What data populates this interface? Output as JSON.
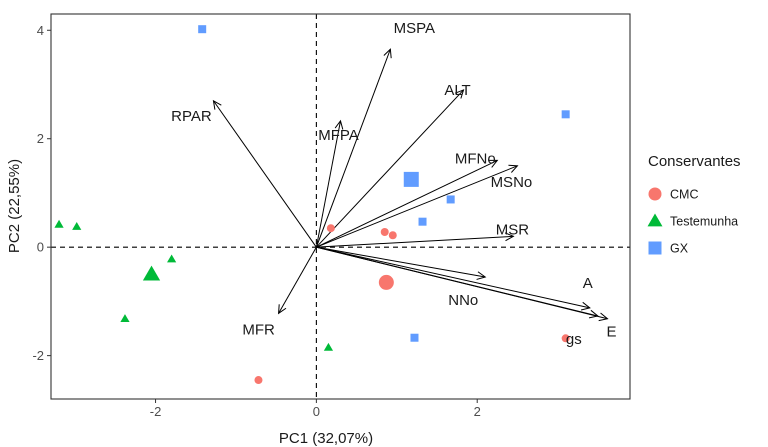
{
  "chart_data": {
    "type": "scatter",
    "subtype": "pca-biplot",
    "xlabel": "PC1 (32,07%)",
    "ylabel": "PC2 (22,55%)",
    "xlim": [
      -3.3,
      3.9
    ],
    "ylim": [
      -2.8,
      4.3
    ],
    "xticks": [
      -2,
      0,
      2
    ],
    "yticks": [
      -2,
      0,
      2,
      4
    ],
    "grid": false,
    "reference_lines": {
      "x": 0,
      "y": 0,
      "style": "dashed"
    },
    "legend": {
      "title": "Conservantes",
      "placement": "right"
    },
    "series": [
      {
        "name": "CMC",
        "color": "#F8766D",
        "shape": "circle",
        "points": [
          [
            0.18,
            0.35
          ],
          [
            0.85,
            0.28
          ],
          [
            0.95,
            0.22
          ],
          [
            -0.72,
            -2.45
          ],
          [
            3.1,
            -1.68
          ]
        ],
        "centroid": [
          0.87,
          -0.65
        ]
      },
      {
        "name": "Testemunha",
        "color": "#00BA38",
        "shape": "triangle",
        "points": [
          [
            -3.2,
            0.42
          ],
          [
            -2.98,
            0.38
          ],
          [
            -1.8,
            -0.22
          ],
          [
            -2.38,
            -1.32
          ],
          [
            0.15,
            -1.85
          ]
        ],
        "centroid": [
          -2.05,
          -0.5
        ]
      },
      {
        "name": "GX",
        "color": "#619CFF",
        "shape": "square",
        "points": [
          [
            -1.42,
            4.02
          ],
          [
            3.1,
            2.45
          ],
          [
            1.67,
            0.88
          ],
          [
            1.32,
            0.47
          ],
          [
            1.22,
            -1.67
          ]
        ],
        "centroid": [
          1.18,
          1.25
        ]
      }
    ],
    "loadings": [
      {
        "label": "MSPA",
        "x": 0.92,
        "y": 3.65
      },
      {
        "label": "ALT",
        "x": 1.83,
        "y": 2.9
      },
      {
        "label": "RPAR",
        "x": -1.28,
        "y": 2.7
      },
      {
        "label": "MFPA",
        "x": 0.3,
        "y": 2.33
      },
      {
        "label": "MFNo",
        "x": 2.25,
        "y": 1.6
      },
      {
        "label": "MSNo",
        "x": 2.5,
        "y": 1.5
      },
      {
        "label": "MSR",
        "x": 2.45,
        "y": 0.2
      },
      {
        "label": "NNo",
        "x": 2.1,
        "y": -0.55
      },
      {
        "label": "A",
        "x": 3.4,
        "y": -1.12
      },
      {
        "label": "E",
        "x": 3.62,
        "y": -1.32
      },
      {
        "label": "gs",
        "x": 3.5,
        "y": -1.27
      },
      {
        "label": "MFR",
        "x": -0.47,
        "y": -1.22
      }
    ]
  }
}
